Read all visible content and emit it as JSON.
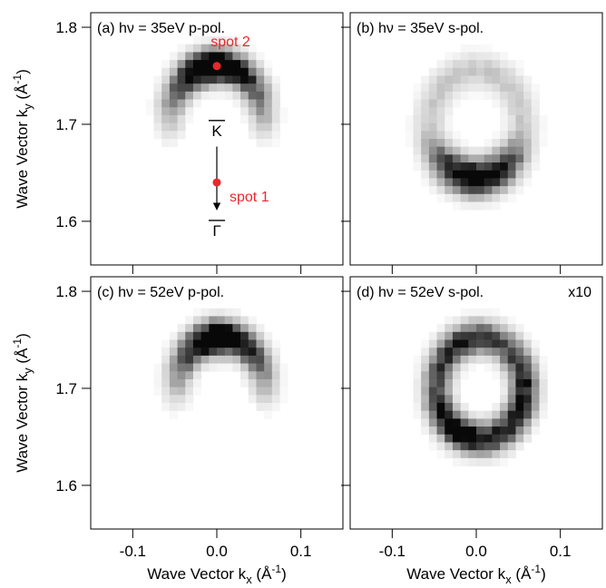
{
  "chart_data": {
    "type": "heatmap",
    "colormap": "white-to-black grayscale",
    "x_axis": {
      "label": "Wave Vector k",
      "label_sub": "x",
      "unit": "(Å",
      "unit_sup": "-1",
      "unit_close": ")",
      "range": [
        -0.15,
        0.15
      ],
      "ticks": [
        -0.1,
        0.0,
        0.1
      ],
      "tick_labels": [
        "-0.1",
        "0.0",
        "0.1"
      ]
    },
    "y_axis": {
      "label": "Wave Vector k",
      "label_sub": "y",
      "unit": "(Å",
      "unit_sup": "-1",
      "unit_close": ")",
      "range": [
        1.555,
        1.815
      ],
      "ticks": [
        1.6,
        1.7,
        1.8
      ],
      "tick_labels": [
        "1.6",
        "1.7",
        "1.8"
      ]
    },
    "panels": [
      {
        "id": "a",
        "title": "(a) hν = 35eV p-pol.",
        "annotation": "",
        "intensity_map": {
          "shape": "arc-open-bottom",
          "center": [
            0.0,
            1.705
          ],
          "radius": 0.055,
          "peak_at": [
            -0.01,
            1.752
          ]
        },
        "markers": [
          {
            "label": "spot 2",
            "kx": 0.0,
            "ky": 1.76,
            "color": "#e8282c"
          },
          {
            "label": "spot 1",
            "kx": 0.0,
            "ky": 1.64,
            "color": "#e8282c"
          }
        ],
        "arrow": {
          "from": [
            0.0,
            1.677
          ],
          "to": [
            0.0,
            1.612
          ]
        },
        "symbol_labels": [
          {
            "text": "K",
            "overbar": true,
            "kx": 0.0,
            "ky": 1.688
          },
          {
            "text": "Γ",
            "overbar": true,
            "kx": 0.0,
            "ky": 1.585
          }
        ]
      },
      {
        "id": "b",
        "title": "(b) hν = 35eV s-pol.",
        "annotation": "",
        "intensity_map": {
          "shape": "ring-strong-bottom",
          "center": [
            0.0,
            1.7
          ],
          "radius": 0.055,
          "peak_at": [
            0.0,
            1.645
          ]
        }
      },
      {
        "id": "c",
        "title": "(c) hν = 52eV p-pol.",
        "annotation": "",
        "intensity_map": {
          "shape": "arc-open-bottom",
          "center": [
            0.005,
            1.7
          ],
          "radius": 0.052,
          "peak_at": [
            0.01,
            1.748
          ]
        }
      },
      {
        "id": "d",
        "title": "(d) hν = 52eV s-pol.",
        "annotation": "x10",
        "intensity_map": {
          "shape": "ring-uniform",
          "center": [
            0.005,
            1.7
          ],
          "radius": 0.052,
          "peak_at": null
        }
      }
    ]
  }
}
